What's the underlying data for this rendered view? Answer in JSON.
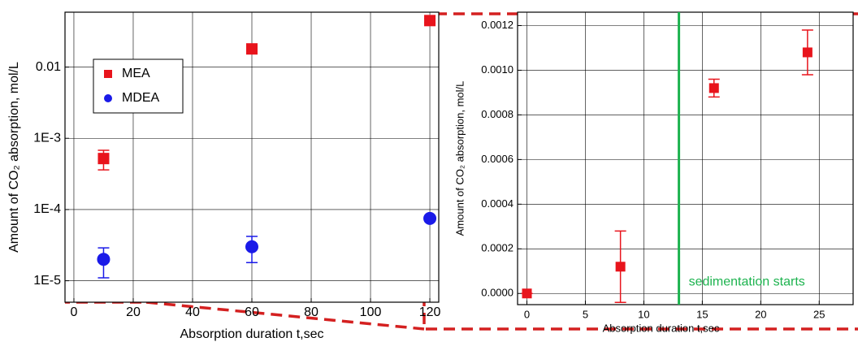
{
  "chart_data": [
    {
      "type": "scatter",
      "log_y": true,
      "grid": true,
      "legend": "upper left",
      "xlabel": "Absorption duration t,sec",
      "ylabel": "Amount of CO₂ absorption, mol/L",
      "xlim": [
        -3,
        123
      ],
      "xticks": [
        0,
        20,
        40,
        60,
        80,
        100,
        120
      ],
      "ylim": [
        5e-06,
        0.059
      ],
      "yticks": [
        {
          "value": 1e-05,
          "label": "1E-5"
        },
        {
          "value": 0.0001,
          "label": "1E-4"
        },
        {
          "value": 0.001,
          "label": "1E-3"
        },
        0.01
      ],
      "series": [
        {
          "name": "MEA",
          "color": "#e8141c",
          "marker": "square",
          "x": [
            10,
            60,
            120
          ],
          "values": [
            0.00052,
            0.018,
            0.045
          ],
          "errors": [
            0.00016,
            0.0015,
            0.003
          ]
        },
        {
          "name": "MDEA",
          "color": "#1a1ae8",
          "marker": "circle",
          "x": [
            10,
            60,
            120
          ],
          "values": [
            2e-05,
            3e-05,
            7.5e-05
          ],
          "errors": [
            9e-06,
            1.2e-05,
            6e-06
          ]
        }
      ]
    },
    {
      "type": "scatter",
      "log_y": false,
      "grid": true,
      "xlabel": "Absorption duration t,sec",
      "ylabel": "Amount of CO₂ absorption, mol/L",
      "xlim": [
        -0.8,
        27.9
      ],
      "xticks": [
        0,
        5,
        10,
        15,
        20,
        25
      ],
      "ylim": [
        -5e-05,
        0.00126
      ],
      "yticks": [
        {
          "value": 0,
          "label": "0.0000"
        },
        {
          "value": 0.0002,
          "label": "0.0002"
        },
        {
          "value": 0.0004,
          "label": "0.0004"
        },
        {
          "value": 0.0006,
          "label": "0.0006"
        },
        {
          "value": 0.0008,
          "label": "0.0008"
        },
        {
          "value": 0.001,
          "label": "0.0010"
        },
        {
          "value": 0.0012,
          "label": "0.0012"
        }
      ],
      "series": [
        {
          "color": "#e8141c",
          "marker": "square",
          "x": [
            0,
            8,
            16,
            24
          ],
          "values": [
            0,
            0.00012,
            0.00092,
            0.00108
          ],
          "errors": [
            0,
            0.00016,
            4e-05,
            0.0001
          ]
        }
      ],
      "vline": {
        "x": 13,
        "color": "#1db34f",
        "label": "sedimentation starts"
      }
    }
  ]
}
